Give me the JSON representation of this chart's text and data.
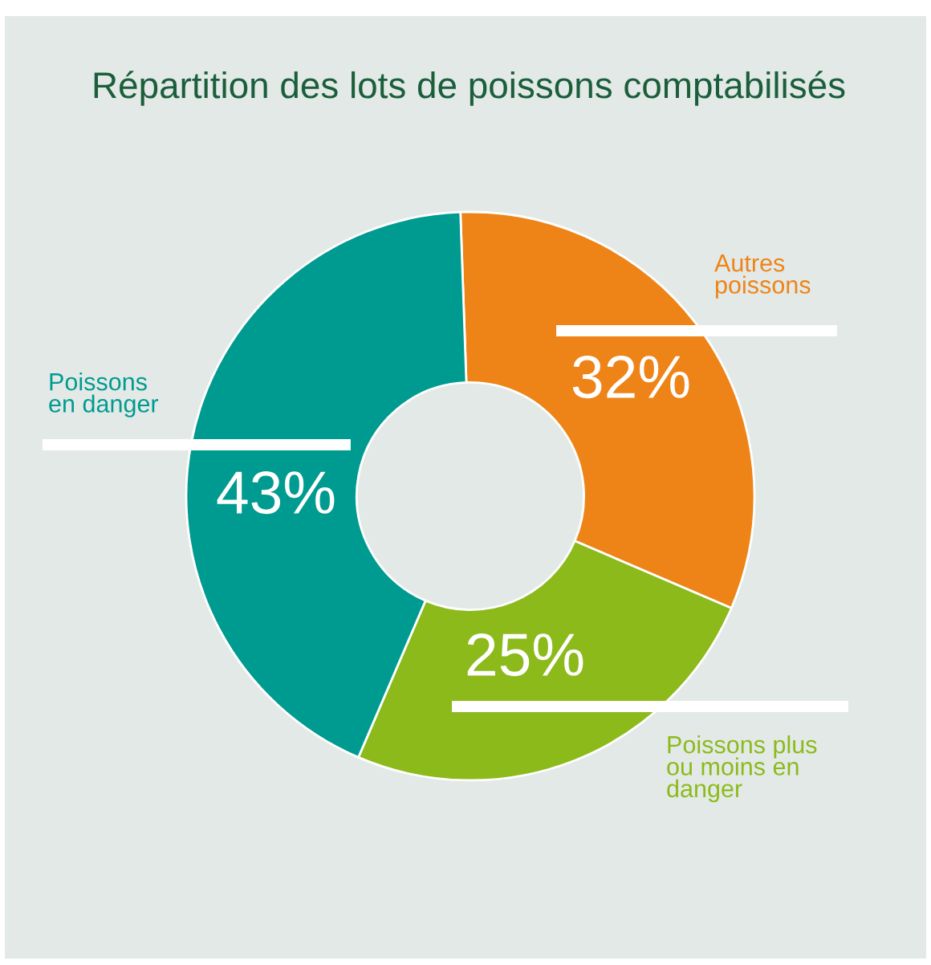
{
  "chart_data": {
    "type": "donut",
    "title": "Répartition des lots de poissons comptabilisés",
    "categories": [
      "Autres\npoissons",
      "Poissons plus\nou moins en\ndanger",
      "Poissons\nen danger"
    ],
    "values": [
      32,
      25,
      43
    ],
    "value_labels": [
      "32%",
      "25%",
      "43%"
    ],
    "colors": [
      "#ee8418",
      "#8cba1b",
      "#009b90"
    ],
    "legend": false
  }
}
